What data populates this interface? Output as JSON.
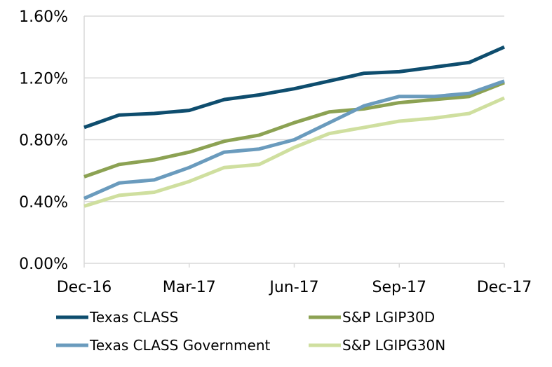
{
  "chart_data": {
    "type": "line",
    "title": "",
    "xlabel": "",
    "ylabel": "",
    "x": [
      "Dec-16",
      "Jan-17",
      "Feb-17",
      "Mar-17",
      "Apr-17",
      "May-17",
      "Jun-17",
      "Jul-17",
      "Aug-17",
      "Sep-17",
      "Oct-17",
      "Nov-17",
      "Dec-17"
    ],
    "x_tick_labels": [
      "Dec-16",
      "Mar-17",
      "Jun-17",
      "Sep-17",
      "Dec-17"
    ],
    "x_tick_indices": [
      0,
      3,
      6,
      9,
      12
    ],
    "ylim": [
      0,
      1.6
    ],
    "y_ticks": [
      0,
      0.4,
      0.8,
      1.2,
      1.6
    ],
    "y_tick_labels": [
      "0.00%",
      "0.40%",
      "0.80%",
      "1.20%",
      "1.60%"
    ],
    "grid": "horizontal",
    "legend_position": "bottom",
    "series": [
      {
        "name": "Texas CLASS",
        "color": "#0e4d6e",
        "values": [
          0.88,
          0.96,
          0.97,
          0.99,
          1.06,
          1.09,
          1.13,
          1.18,
          1.23,
          1.24,
          1.27,
          1.3,
          1.4
        ]
      },
      {
        "name": "S&P LGIP30D",
        "color": "#8ca253",
        "values": [
          0.56,
          0.64,
          0.67,
          0.72,
          0.79,
          0.83,
          0.91,
          0.98,
          1.0,
          1.04,
          1.06,
          1.08,
          1.17
        ]
      },
      {
        "name": "Texas CLASS Government",
        "color": "#6a9bbd",
        "values": [
          0.42,
          0.52,
          0.54,
          0.62,
          0.72,
          0.74,
          0.8,
          0.91,
          1.02,
          1.08,
          1.08,
          1.1,
          1.18
        ]
      },
      {
        "name": "S&P LGIPG30N",
        "color": "#cfdf9f",
        "values": [
          0.37,
          0.44,
          0.46,
          0.53,
          0.62,
          0.64,
          0.75,
          0.84,
          0.88,
          0.92,
          0.94,
          0.97,
          1.07
        ]
      }
    ]
  }
}
